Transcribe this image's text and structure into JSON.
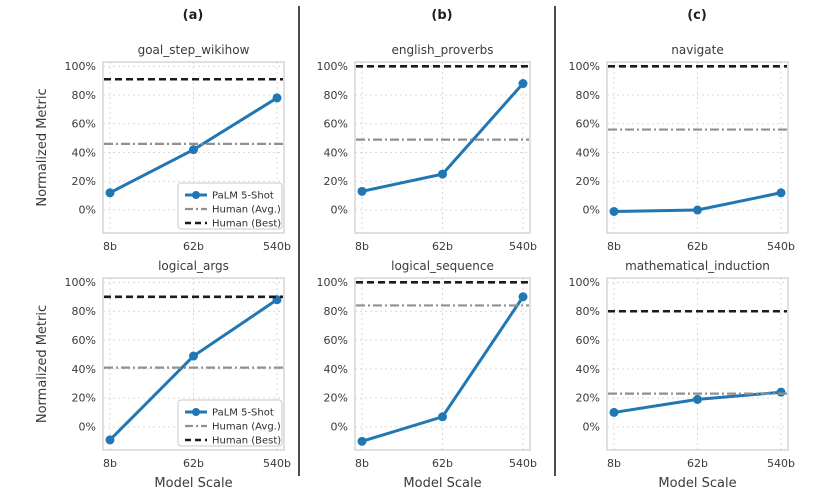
{
  "figure": {
    "column_labels": [
      "(a)",
      "(b)",
      "(c)"
    ],
    "ylabel": "Normalized Metric",
    "xlabel": "Model Scale",
    "categories": [
      "8b",
      "62b",
      "540b"
    ],
    "yticks": [
      {
        "v": 100,
        "label": "100%"
      },
      {
        "v": 80,
        "label": "80%"
      },
      {
        "v": 60,
        "label": "60%"
      },
      {
        "v": 40,
        "label": "40%"
      },
      {
        "v": 20,
        "label": "20%"
      },
      {
        "v": 0,
        "label": "0%"
      }
    ],
    "legend_labels": [
      "PaLM 5-Shot",
      "Human (Avg.)",
      "Human (Best)"
    ]
  },
  "colors": {
    "palm": "#2077b4",
    "human_avg": "#909090",
    "human_best": "#1c1c1c",
    "grid": "#d9d9d9",
    "spine": "#cccccc",
    "text": "#3a3a3a",
    "legend_border": "#c9c9c9",
    "divider": "#4a4f55",
    "background": "#ffffff"
  },
  "chart_data": [
    {
      "type": "line",
      "title": "goal_step_wikihow",
      "categories": [
        "8b",
        "62b",
        "540b"
      ],
      "ylim": [
        -16,
        103
      ],
      "legend": true,
      "show_ylabel": true,
      "show_xlabel": false,
      "series": [
        {
          "name": "PaLM 5-Shot",
          "kind": "line_markers",
          "values": [
            12,
            42,
            78
          ]
        },
        {
          "name": "Human (Avg.)",
          "kind": "hline_dashdot",
          "value": 46
        },
        {
          "name": "Human (Best)",
          "kind": "hline_dashed",
          "value": 91
        }
      ]
    },
    {
      "type": "line",
      "title": "english_proverbs",
      "categories": [
        "8b",
        "62b",
        "540b"
      ],
      "ylim": [
        -16,
        103
      ],
      "legend": false,
      "show_ylabel": false,
      "show_xlabel": false,
      "series": [
        {
          "name": "PaLM 5-Shot",
          "kind": "line_markers",
          "values": [
            13,
            25,
            88
          ]
        },
        {
          "name": "Human (Avg.)",
          "kind": "hline_dashdot",
          "value": 49
        },
        {
          "name": "Human (Best)",
          "kind": "hline_dashed",
          "value": 100
        }
      ]
    },
    {
      "type": "line",
      "title": "navigate",
      "categories": [
        "8b",
        "62b",
        "540b"
      ],
      "ylim": [
        -16,
        103
      ],
      "legend": false,
      "show_ylabel": false,
      "show_xlabel": false,
      "series": [
        {
          "name": "PaLM 5-Shot",
          "kind": "line_markers",
          "values": [
            -1,
            0,
            12
          ]
        },
        {
          "name": "Human (Avg.)",
          "kind": "hline_dashdot",
          "value": 56
        },
        {
          "name": "Human (Best)",
          "kind": "hline_dashed",
          "value": 100
        }
      ]
    },
    {
      "type": "line",
      "title": "logical_args",
      "categories": [
        "8b",
        "62b",
        "540b"
      ],
      "ylim": [
        -16,
        103
      ],
      "legend": true,
      "show_ylabel": true,
      "show_xlabel": true,
      "series": [
        {
          "name": "PaLM 5-Shot",
          "kind": "line_markers",
          "values": [
            -9,
            49,
            88
          ]
        },
        {
          "name": "Human (Avg.)",
          "kind": "hline_dashdot",
          "value": 41
        },
        {
          "name": "Human (Best)",
          "kind": "hline_dashed",
          "value": 90
        }
      ]
    },
    {
      "type": "line",
      "title": "logical_sequence",
      "categories": [
        "8b",
        "62b",
        "540b"
      ],
      "ylim": [
        -16,
        103
      ],
      "legend": false,
      "show_ylabel": false,
      "show_xlabel": true,
      "series": [
        {
          "name": "PaLM 5-Shot",
          "kind": "line_markers",
          "values": [
            -10,
            7,
            90
          ]
        },
        {
          "name": "Human (Avg.)",
          "kind": "hline_dashdot",
          "value": 84
        },
        {
          "name": "Human (Best)",
          "kind": "hline_dashed",
          "value": 100
        }
      ]
    },
    {
      "type": "line",
      "title": "mathematical_induction",
      "categories": [
        "8b",
        "62b",
        "540b"
      ],
      "ylim": [
        -16,
        103
      ],
      "legend": false,
      "show_ylabel": false,
      "show_xlabel": true,
      "series": [
        {
          "name": "PaLM 5-Shot",
          "kind": "line_markers",
          "values": [
            10,
            19,
            24
          ]
        },
        {
          "name": "Human (Avg.)",
          "kind": "hline_dashdot",
          "value": 23
        },
        {
          "name": "Human (Best)",
          "kind": "hline_dashed",
          "value": 80
        }
      ]
    }
  ]
}
